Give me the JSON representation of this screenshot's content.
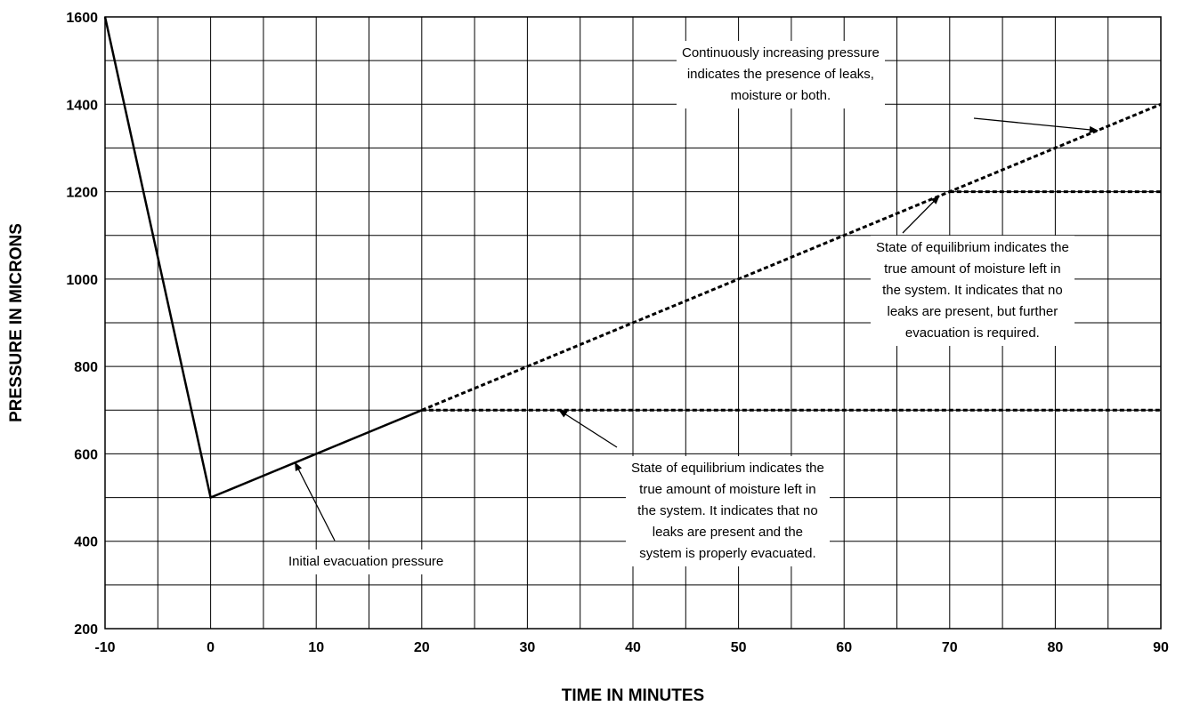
{
  "chart_data": {
    "type": "line",
    "xlabel": "TIME IN MINUTES",
    "ylabel": "PRESSURE IN MICRONS",
    "xlim": [
      -10,
      90
    ],
    "ylim": [
      200,
      1600
    ],
    "xticks": [
      "-10",
      "0",
      "10",
      "20",
      "30",
      "40",
      "50",
      "60",
      "70",
      "80",
      "90"
    ],
    "yticks": [
      "200",
      "400",
      "600",
      "800",
      "1000",
      "1200",
      "1400",
      "1600"
    ],
    "grid": true,
    "series": [
      {
        "style": "solid",
        "x": [
          -10,
          0,
          5,
          10,
          15,
          20
        ],
        "y": [
          1600,
          500,
          550,
          600,
          650,
          700
        ]
      },
      {
        "style": "dotted",
        "x": [
          20,
          30,
          40,
          50,
          60,
          70,
          80,
          90
        ],
        "y": [
          700,
          800,
          900,
          1000,
          1100,
          1200,
          1300,
          1400
        ]
      },
      {
        "style": "dotted",
        "x": [
          20,
          90
        ],
        "y": [
          700,
          700
        ]
      },
      {
        "style": "dotted",
        "x": [
          70,
          90
        ],
        "y": [
          1200,
          1200
        ]
      }
    ],
    "annotations": [
      {
        "lines": [
          "Initial evacuation pressure"
        ],
        "arrow_to": [
          8,
          580
        ]
      },
      {
        "lines": [
          "State of equilibrium indicates the",
          "true amount of moisture left in",
          "the system. It indicates that no",
          "leaks are present and the",
          "system is properly evacuated."
        ],
        "arrow_to": [
          33,
          700
        ]
      },
      {
        "lines": [
          "State of equilibrium indicates the",
          "true amount of moisture left in",
          "the system. It indicates that no",
          "leaks are present, but further",
          "evacuation is required."
        ],
        "arrow_to": [
          69,
          1190
        ]
      },
      {
        "lines": [
          "Continuously increasing pressure",
          "indicates the presence of leaks,",
          "moisture or both."
        ],
        "arrow_to": [
          84,
          1340
        ]
      }
    ]
  }
}
